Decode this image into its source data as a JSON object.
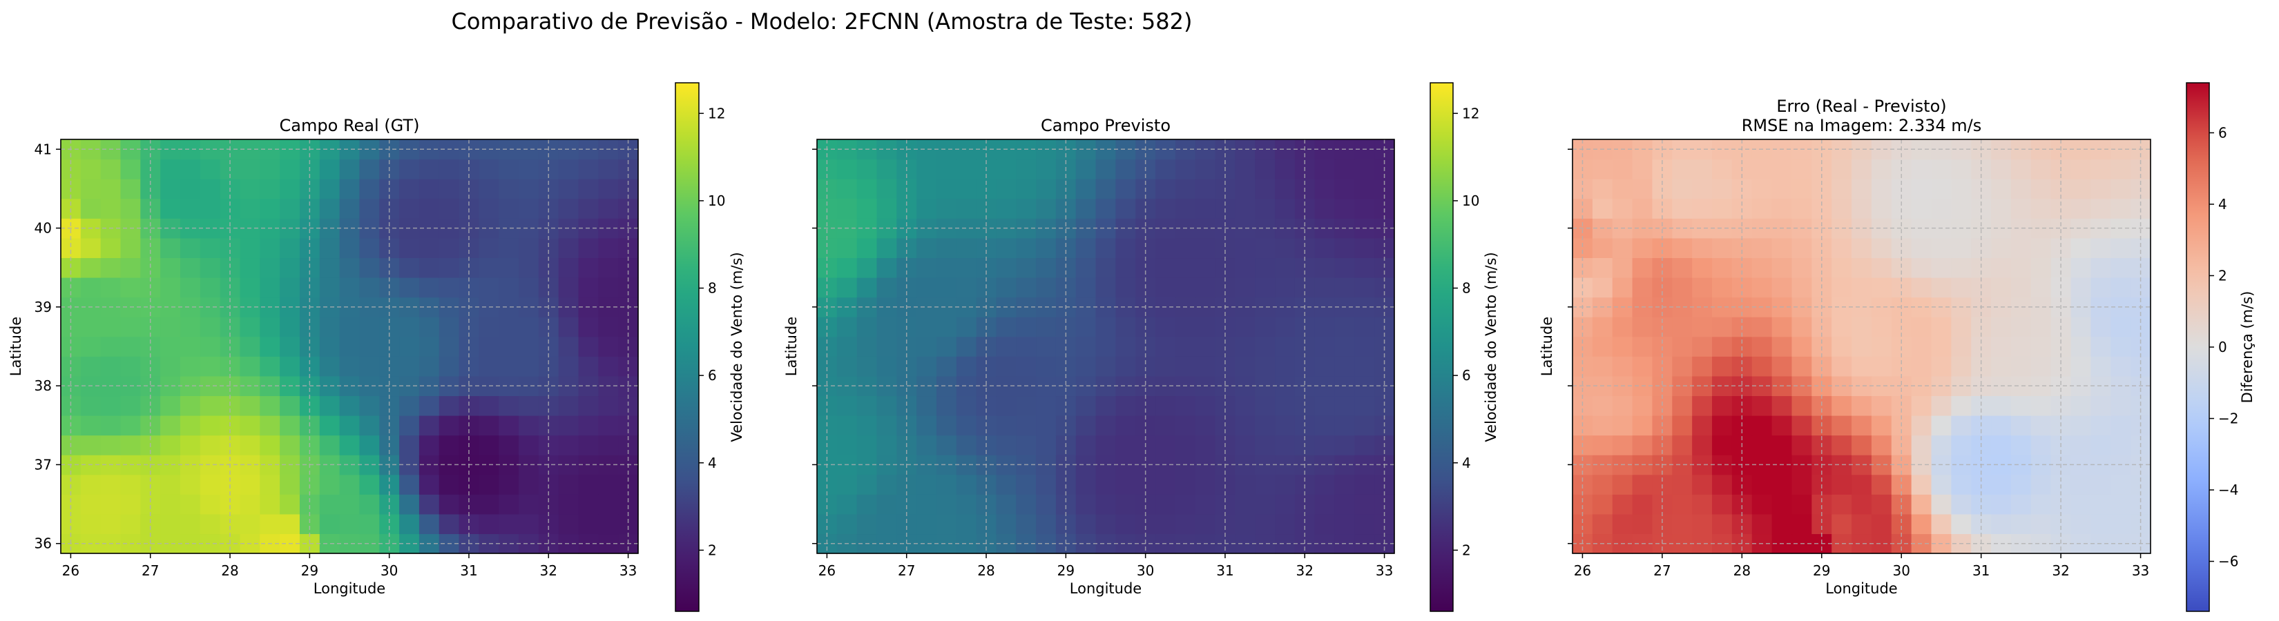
{
  "suptitle": "Comparativo de Previsão - Modelo: 2FCNN (Amostra de Teste: 582)",
  "chart_data": [
    {
      "type": "heatmap",
      "title": "Campo Real (GT)",
      "xlabel": "Longitude",
      "ylabel": "Latitude",
      "xlim": [
        25.875,
        33.125
      ],
      "ylim": [
        35.875,
        41.125
      ],
      "xticks": [
        26,
        27,
        28,
        29,
        30,
        31,
        32,
        33
      ],
      "yticks": [
        36,
        37,
        38,
        39,
        40,
        41
      ],
      "show_ytick_labels": true,
      "grid": true,
      "cmap": "viridis",
      "colorbar": {
        "label": "Velocidade do Vento (m/s)",
        "range": [
          0.6,
          12.7
        ],
        "ticks": [
          2,
          4,
          6,
          8,
          10,
          12
        ]
      },
      "field": "real"
    },
    {
      "type": "heatmap",
      "title": "Campo Previsto",
      "xlabel": "Longitude",
      "ylabel": "Latitude",
      "xlim": [
        25.875,
        33.125
      ],
      "ylim": [
        35.875,
        41.125
      ],
      "xticks": [
        26,
        27,
        28,
        29,
        30,
        31,
        32,
        33
      ],
      "yticks": [
        36,
        37,
        38,
        39,
        40,
        41
      ],
      "show_ytick_labels": false,
      "grid": true,
      "cmap": "viridis",
      "colorbar": {
        "label": "Velocidade do Vento (m/s)",
        "range": [
          0.6,
          12.7
        ],
        "ticks": [
          2,
          4,
          6,
          8,
          10,
          12
        ]
      },
      "field": "pred"
    },
    {
      "type": "heatmap",
      "title": "Erro (Real - Previsto)",
      "subtitle": "RMSE na Imagem: 2.334 m/s",
      "xlabel": "Longitude",
      "ylabel": "Latitude",
      "xlim": [
        25.875,
        33.125
      ],
      "ylim": [
        35.875,
        41.125
      ],
      "xticks": [
        26,
        27,
        28,
        29,
        30,
        31,
        32,
        33
      ],
      "yticks": [
        36,
        37,
        38,
        39,
        40,
        41
      ],
      "show_ytick_labels": false,
      "grid": true,
      "cmap": "coolwarm",
      "colorbar": {
        "label": "Diferença (m/s)",
        "range": [
          -7.4,
          7.4
        ],
        "ticks": [
          -6,
          -4,
          -2,
          0,
          2,
          4,
          6
        ]
      },
      "field": "error",
      "rmse": 2.334
    }
  ],
  "grid_spec": {
    "lon_start": 26.0,
    "lon_step": 0.25,
    "nx": 29,
    "lat_start": 36.0,
    "lat_step": 0.25,
    "ny": 21
  },
  "fields": {
    "real_key_points": [
      {
        "lon": 26.0,
        "lat": 40.0,
        "v": 12.3
      },
      {
        "lon": 26.25,
        "lat": 40.25,
        "v": 10.5
      },
      {
        "lon": 26.25,
        "lat": 39.0,
        "v": 9.5
      },
      {
        "lon": 26.5,
        "lat": 38.0,
        "v": 9.0
      },
      {
        "lon": 26.5,
        "lat": 36.5,
        "v": 11.8
      },
      {
        "lon": 27.25,
        "lat": 36.25,
        "v": 11.5
      },
      {
        "lon": 28.0,
        "lat": 36.75,
        "v": 12.0
      },
      {
        "lon": 28.75,
        "lat": 36.0,
        "v": 12.3
      },
      {
        "lon": 29.25,
        "lat": 36.25,
        "v": 9.0
      },
      {
        "lon": 28.0,
        "lat": 41.0,
        "v": 8.5
      },
      {
        "lon": 27.5,
        "lat": 40.5,
        "v": 8.0
      },
      {
        "lon": 30.5,
        "lat": 40.0,
        "v": 3.0
      },
      {
        "lon": 31.0,
        "lat": 37.0,
        "v": 1.0
      },
      {
        "lon": 32.75,
        "lat": 36.5,
        "v": 1.5
      },
      {
        "lon": 33.0,
        "lat": 39.0,
        "v": 1.8
      },
      {
        "lon": 31.5,
        "lat": 38.5,
        "v": 3.5
      },
      {
        "lon": 30.0,
        "lat": 38.5,
        "v": 5.0
      }
    ],
    "pred_key_points": [
      {
        "lon": 26.0,
        "lat": 40.0,
        "v": 8.5
      },
      {
        "lon": 26.0,
        "lat": 37.0,
        "v": 6.5
      },
      {
        "lon": 27.0,
        "lat": 36.25,
        "v": 5.5
      },
      {
        "lon": 28.0,
        "lat": 41.0,
        "v": 6.5
      },
      {
        "lon": 27.25,
        "lat": 39.0,
        "v": 5.2
      },
      {
        "lon": 28.25,
        "lat": 38.0,
        "v": 3.5
      },
      {
        "lon": 30.5,
        "lat": 39.5,
        "v": 2.8
      },
      {
        "lon": 30.0,
        "lat": 37.0,
        "v": 2.5
      },
      {
        "lon": 32.5,
        "lat": 38.0,
        "v": 3.2
      },
      {
        "lon": 33.0,
        "lat": 36.5,
        "v": 2.4
      },
      {
        "lon": 33.0,
        "lat": 41.0,
        "v": 2.0
      }
    ]
  }
}
